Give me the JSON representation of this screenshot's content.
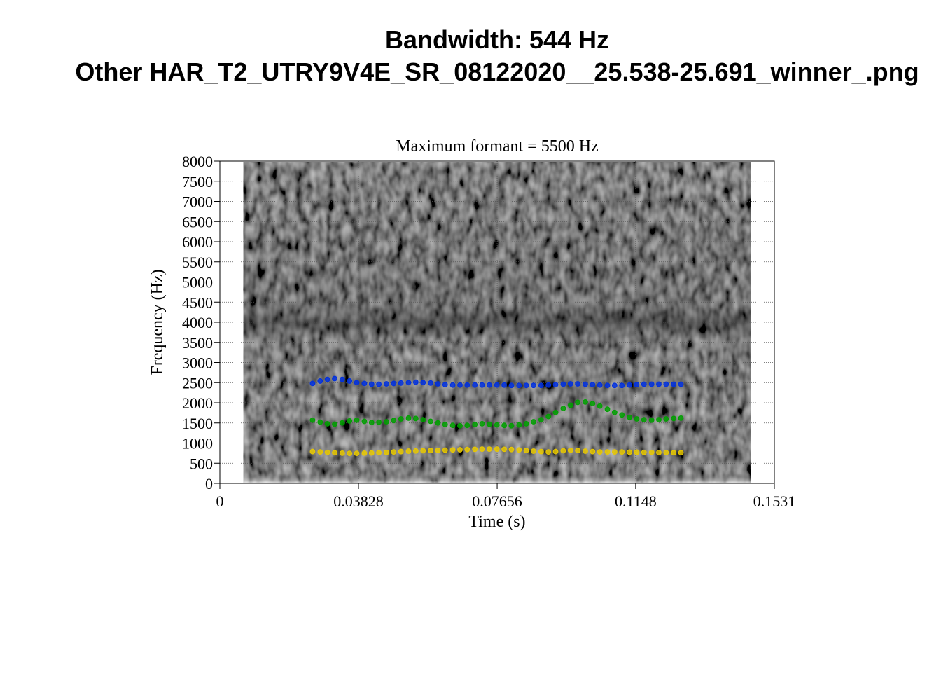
{
  "page": {
    "title_line1": "Bandwidth: 544 Hz",
    "title_line2": "Other HAR_T2_UTRY9V4E_SR_08122020__25.538-25.691_winner_.png"
  },
  "chart_data": {
    "type": "scatter",
    "title": "Maximum formant = 5500 Hz",
    "xlabel": "Time (s)",
    "ylabel": "Frequency (Hz)",
    "xlim": [
      0,
      0.1531
    ],
    "ylim": [
      0,
      8000
    ],
    "x_ticks": [
      "0",
      "0.03828",
      "0.07656",
      "0.1148",
      "0.1531"
    ],
    "y_ticks": [
      "0",
      "500",
      "1000",
      "1500",
      "2000",
      "2500",
      "3000",
      "3500",
      "4000",
      "4500",
      "5000",
      "5500",
      "6000",
      "6500",
      "7000",
      "7500",
      "8000"
    ],
    "spectrogram_range_s": [
      0.0065,
      0.1466
    ],
    "background": "grayscale spectrogram",
    "grid": true,
    "series": [
      {
        "color": "#e8c800",
        "x": [
          0.0256,
          0.0277,
          0.0297,
          0.0317,
          0.0338,
          0.0358,
          0.0378,
          0.0399,
          0.0419,
          0.0439,
          0.046,
          0.048,
          0.05,
          0.0521,
          0.0541,
          0.0561,
          0.0582,
          0.0602,
          0.0622,
          0.0643,
          0.0663,
          0.0683,
          0.0704,
          0.0724,
          0.0744,
          0.0765,
          0.0785,
          0.0805,
          0.0826,
          0.0846,
          0.0866,
          0.0887,
          0.0907,
          0.0927,
          0.0948,
          0.0968,
          0.0988,
          0.1009,
          0.1029,
          0.1049,
          0.107,
          0.109,
          0.111,
          0.1131,
          0.1151,
          0.1171,
          0.1192,
          0.1212,
          0.1232,
          0.1253,
          0.1273
        ],
        "y": [
          790,
          780,
          770,
          760,
          750,
          745,
          745,
          750,
          755,
          760,
          770,
          780,
          790,
          800,
          805,
          810,
          815,
          820,
          825,
          830,
          835,
          840,
          845,
          850,
          850,
          850,
          845,
          840,
          830,
          815,
          800,
          790,
          780,
          790,
          810,
          820,
          815,
          800,
          790,
          780,
          780,
          780,
          780,
          775,
          775,
          770,
          770,
          765,
          765,
          760,
          760
        ]
      },
      {
        "color": "#00a000",
        "x": [
          0.0256,
          0.0277,
          0.0297,
          0.0317,
          0.0338,
          0.0358,
          0.0378,
          0.0399,
          0.0419,
          0.0439,
          0.046,
          0.048,
          0.05,
          0.0521,
          0.0541,
          0.0561,
          0.0582,
          0.0602,
          0.0622,
          0.0643,
          0.0663,
          0.0683,
          0.0704,
          0.0724,
          0.0744,
          0.0765,
          0.0785,
          0.0805,
          0.0826,
          0.0846,
          0.0866,
          0.0887,
          0.0907,
          0.0927,
          0.0948,
          0.0968,
          0.0988,
          0.1009,
          0.1029,
          0.1049,
          0.107,
          0.109,
          0.111,
          0.1131,
          0.1151,
          0.1171,
          0.1192,
          0.1212,
          0.1232,
          0.1253,
          0.1273
        ],
        "y": [
          1570,
          1520,
          1480,
          1470,
          1500,
          1550,
          1570,
          1540,
          1510,
          1520,
          1530,
          1560,
          1600,
          1620,
          1610,
          1580,
          1540,
          1500,
          1460,
          1440,
          1430,
          1440,
          1460,
          1480,
          1470,
          1450,
          1440,
          1430,
          1450,
          1480,
          1530,
          1580,
          1660,
          1760,
          1860,
          1940,
          2010,
          2020,
          1980,
          1920,
          1840,
          1760,
          1700,
          1640,
          1600,
          1580,
          1570,
          1580,
          1600,
          1610,
          1620
        ]
      },
      {
        "color": "#0030e0",
        "x": [
          0.0256,
          0.0277,
          0.0297,
          0.0317,
          0.0338,
          0.0358,
          0.0378,
          0.0399,
          0.0419,
          0.0439,
          0.046,
          0.048,
          0.05,
          0.0521,
          0.0541,
          0.0561,
          0.0582,
          0.0602,
          0.0622,
          0.0643,
          0.0663,
          0.0683,
          0.0704,
          0.0724,
          0.0744,
          0.0765,
          0.0785,
          0.0805,
          0.0826,
          0.0846,
          0.0866,
          0.0887,
          0.0907,
          0.0927,
          0.0948,
          0.0968,
          0.0988,
          0.1009,
          0.1029,
          0.1049,
          0.107,
          0.109,
          0.111,
          0.1131,
          0.1151,
          0.1171,
          0.1192,
          0.1212,
          0.1232,
          0.1253,
          0.1273
        ],
        "y": [
          2480,
          2540,
          2580,
          2600,
          2580,
          2540,
          2500,
          2480,
          2460,
          2460,
          2470,
          2480,
          2490,
          2500,
          2510,
          2500,
          2490,
          2470,
          2450,
          2440,
          2440,
          2440,
          2440,
          2440,
          2440,
          2440,
          2440,
          2430,
          2430,
          2430,
          2430,
          2430,
          2440,
          2450,
          2460,
          2470,
          2470,
          2460,
          2450,
          2440,
          2430,
          2430,
          2430,
          2440,
          2450,
          2460,
          2460,
          2460,
          2460,
          2460,
          2460
        ]
      }
    ]
  }
}
